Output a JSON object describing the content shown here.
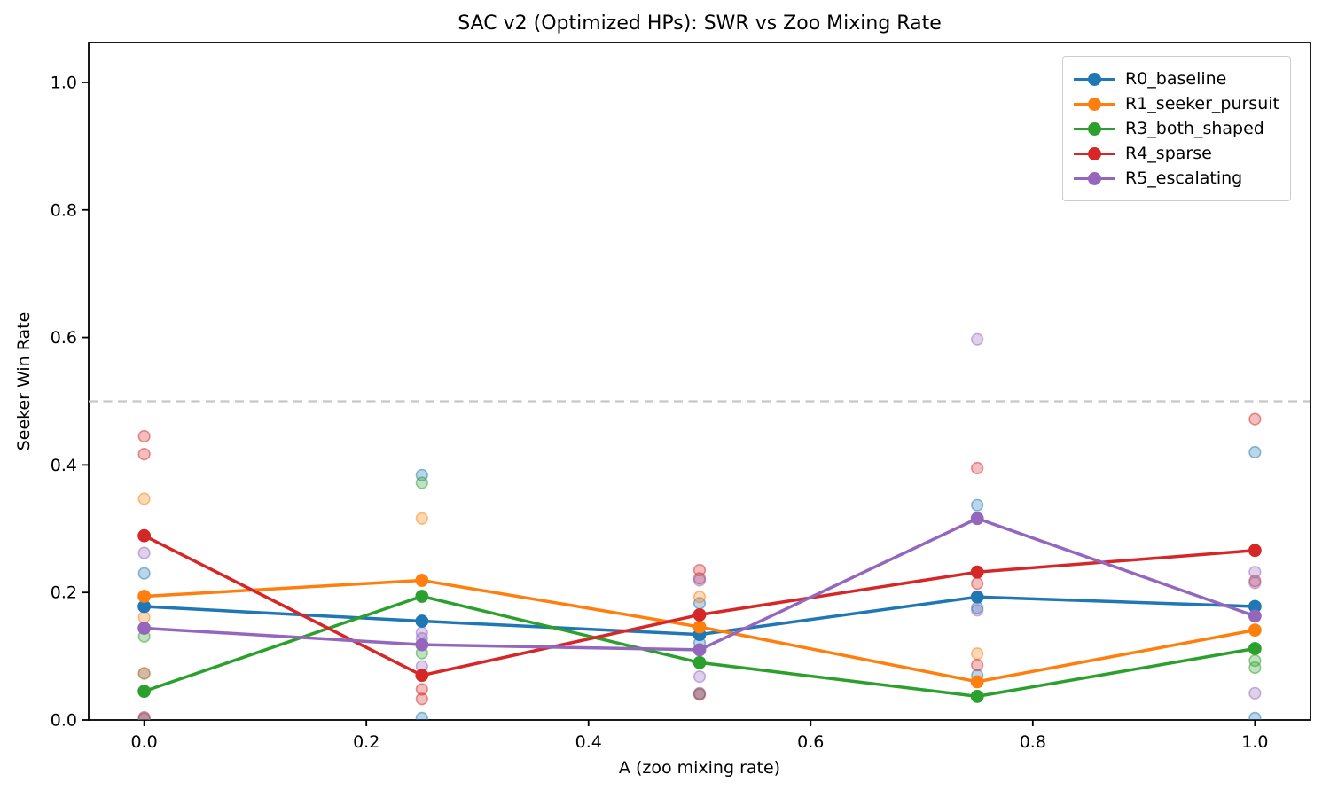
{
  "chart_data": {
    "type": "line",
    "title": "SAC v2 (Optimized HPs): SWR vs Zoo Mixing Rate",
    "xlabel": "A (zoo mixing rate)",
    "ylabel": "Seeker Win Rate",
    "xlim": [
      -0.05,
      1.05
    ],
    "ylim": [
      0.0,
      1.0625
    ],
    "xticks": [
      0.0,
      0.2,
      0.4,
      0.6,
      0.8,
      1.0
    ],
    "yticks": [
      0.0,
      0.2,
      0.4,
      0.6,
      0.8,
      1.0
    ],
    "grid": false,
    "legend_position": "upper right",
    "reference_line": {
      "y": 0.5,
      "style": "dashed",
      "color": "#c7c7c7"
    },
    "x": [
      0.0,
      0.25,
      0.5,
      0.75,
      1.0
    ],
    "series": [
      {
        "name": "R0_baseline",
        "color": "#1f77b4",
        "values": [
          0.178,
          0.155,
          0.134,
          0.193,
          0.178
        ],
        "scatter": [
          [
            0.0,
            0.23
          ],
          [
            0.0,
            0.073
          ],
          [
            0.25,
            0.384
          ],
          [
            0.25,
            0.003
          ],
          [
            0.5,
            0.183
          ],
          [
            0.5,
            0.121
          ],
          [
            0.75,
            0.337
          ],
          [
            0.75,
            0.176
          ],
          [
            0.75,
            0.07
          ],
          [
            1.0,
            0.42
          ],
          [
            1.0,
            0.003
          ]
        ]
      },
      {
        "name": "R1_seeker_pursuit",
        "color": "#ff7f0e",
        "values": [
          0.194,
          0.219,
          0.146,
          0.06,
          0.141
        ],
        "scatter": [
          [
            0.0,
            0.347
          ],
          [
            0.0,
            0.161
          ],
          [
            0.0,
            0.073
          ],
          [
            0.25,
            0.316
          ],
          [
            0.5,
            0.193
          ],
          [
            0.75,
            0.104
          ]
        ]
      },
      {
        "name": "R3_both_shaped",
        "color": "#2ca02c",
        "values": [
          0.045,
          0.194,
          0.09,
          0.037,
          0.112
        ],
        "scatter": [
          [
            0.0,
            0.131
          ],
          [
            0.0,
            0.002
          ],
          [
            0.25,
            0.372
          ],
          [
            0.25,
            0.105
          ],
          [
            0.5,
            0.041
          ],
          [
            1.0,
            0.093
          ],
          [
            1.0,
            0.082
          ]
        ]
      },
      {
        "name": "R4_sparse",
        "color": "#d62728",
        "values": [
          0.289,
          0.07,
          0.165,
          0.232,
          0.266
        ],
        "scatter": [
          [
            0.0,
            0.445
          ],
          [
            0.0,
            0.417
          ],
          [
            0.0,
            0.004
          ],
          [
            0.25,
            0.048
          ],
          [
            0.25,
            0.033
          ],
          [
            0.5,
            0.235
          ],
          [
            0.5,
            0.222
          ],
          [
            0.5,
            0.04
          ],
          [
            0.75,
            0.395
          ],
          [
            0.75,
            0.214
          ],
          [
            0.75,
            0.086
          ],
          [
            1.0,
            0.472
          ],
          [
            1.0,
            0.218
          ]
        ]
      },
      {
        "name": "R5_escalating",
        "color": "#9467bd",
        "values": [
          0.144,
          0.118,
          0.11,
          0.316,
          0.163
        ],
        "scatter": [
          [
            0.0,
            0.262
          ],
          [
            0.0,
            0.002
          ],
          [
            0.25,
            0.137
          ],
          [
            0.25,
            0.128
          ],
          [
            0.25,
            0.084
          ],
          [
            0.5,
            0.219
          ],
          [
            0.5,
            0.068
          ],
          [
            0.5,
            0.042
          ],
          [
            0.75,
            0.597
          ],
          [
            0.75,
            0.172
          ],
          [
            1.0,
            0.232
          ],
          [
            1.0,
            0.215
          ],
          [
            1.0,
            0.042
          ]
        ]
      }
    ]
  }
}
